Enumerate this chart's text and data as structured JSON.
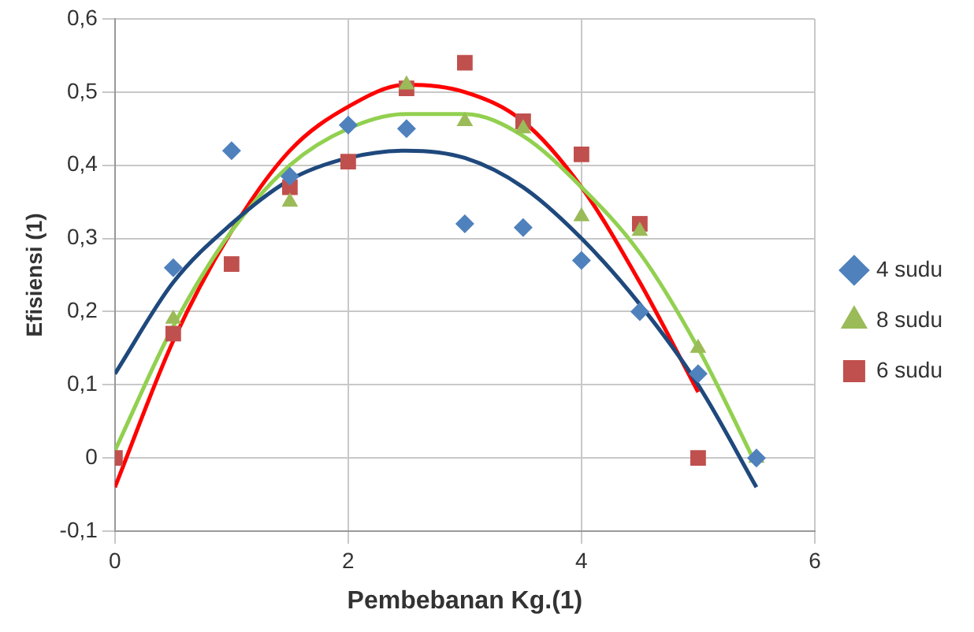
{
  "chart_data": {
    "type": "scatter",
    "xlabel": "Pembebanan Kg.(1)",
    "ylabel": "Efisiensi (1)",
    "xlim": [
      0,
      6
    ],
    "xticks": [
      0,
      2,
      4,
      6
    ],
    "ylim": [
      -0.1,
      0.6
    ],
    "yticks": [
      {
        "value": -0.1,
        "label": "-0,1"
      },
      {
        "value": 0,
        "label": "0"
      },
      {
        "value": 0.1,
        "label": "0,1"
      },
      {
        "value": 0.2,
        "label": "0,2"
      },
      {
        "value": 0.3,
        "label": "0,3"
      },
      {
        "value": 0.4,
        "label": "0,4"
      },
      {
        "value": 0.5,
        "label": "0,5"
      },
      {
        "value": 0.6,
        "label": "0,6"
      }
    ],
    "grid": true,
    "legend": "right",
    "series": [
      {
        "name": "4 sudu",
        "color": "#4f81bd",
        "marker": "diamond",
        "x": [
          0.5,
          1,
          1.5,
          2,
          2.5,
          3,
          3.5,
          4,
          4.5,
          5,
          5.5
        ],
        "values": [
          0.26,
          0.42,
          0.385,
          0.455,
          0.45,
          0.32,
          0.315,
          0.27,
          0.2,
          0.115,
          0
        ]
      },
      {
        "name": "8 sudu",
        "color": "#9bbb59",
        "marker": "triangle",
        "x": [
          0.5,
          1.5,
          2.5,
          3,
          3.5,
          4,
          4.5,
          5,
          5.5
        ],
        "values": [
          0.19,
          0.35,
          0.51,
          0.46,
          0.45,
          0.33,
          0.31,
          0.15,
          0
        ]
      },
      {
        "name": "6 sudu",
        "color": "#c0504d",
        "marker": "square",
        "x": [
          0,
          0.5,
          1,
          1.5,
          2,
          2.5,
          3,
          3.5,
          4,
          4.5,
          5
        ],
        "values": [
          0,
          0.17,
          0.265,
          0.37,
          0.405,
          0.505,
          0.54,
          0.46,
          0.415,
          0.32,
          0
        ]
      },
      {
        "type": "line",
        "color": "#1f497d",
        "marker": "none",
        "x": [
          0,
          0.5,
          1,
          1.5,
          2,
          2.5,
          3,
          3.5,
          4,
          4.5,
          5,
          5.5
        ],
        "values": [
          0.115,
          0.24,
          0.32,
          0.38,
          0.41,
          0.42,
          0.41,
          0.37,
          0.3,
          0.21,
          0.1,
          -0.04
        ]
      },
      {
        "type": "line",
        "color": "#92d050",
        "marker": "none",
        "x": [
          0,
          0.5,
          1,
          1.5,
          2,
          2.5,
          3,
          3.5,
          4,
          4.5,
          5,
          5.5
        ],
        "values": [
          0.01,
          0.18,
          0.31,
          0.4,
          0.45,
          0.47,
          0.47,
          0.44,
          0.37,
          0.28,
          0.15,
          -0.01
        ]
      },
      {
        "type": "line",
        "color": "#ff0000",
        "marker": "none",
        "x": [
          0,
          0.5,
          1,
          1.5,
          2,
          2.5,
          3,
          3.5,
          4,
          4.5,
          5
        ],
        "values": [
          -0.04,
          0.16,
          0.31,
          0.42,
          0.48,
          0.51,
          0.5,
          0.46,
          0.37,
          0.24,
          0.09
        ]
      }
    ]
  }
}
